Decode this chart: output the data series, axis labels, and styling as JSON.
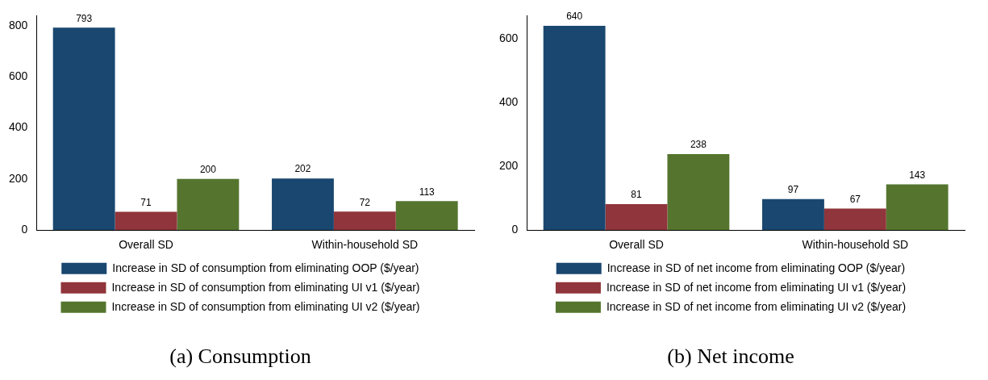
{
  "chart_data": [
    {
      "type": "bar",
      "title": "(a) Consumption",
      "categories": [
        "Overall SD",
        "Within-household SD"
      ],
      "series": [
        {
          "name": "Increase in SD of consumption from eliminating OOP ($/year)",
          "color": "#1a476f",
          "values": [
            793,
            202
          ]
        },
        {
          "name": "Increase in SD of consumption from eliminating UI v1 ($/year)",
          "color": "#90353b",
          "values": [
            71,
            72
          ]
        },
        {
          "name": "Increase in SD of consumption from eliminating UI v2 ($/year)",
          "color": "#55752f",
          "values": [
            200,
            113
          ]
        }
      ],
      "ylim": [
        0,
        840
      ],
      "yticks": [
        0,
        200,
        400,
        600,
        800
      ],
      "grid": false,
      "legend": "bottom",
      "data_labels": true
    },
    {
      "type": "bar",
      "title": "(b) Net income",
      "categories": [
        "Overall SD",
        "Within-household SD"
      ],
      "series": [
        {
          "name": "Increase in SD of net income from eliminating OOP ($/year)",
          "color": "#1a476f",
          "values": [
            640,
            97
          ]
        },
        {
          "name": "Increase in SD of net income from eliminating UI v1 ($/year)",
          "color": "#90353b",
          "values": [
            81,
            67
          ]
        },
        {
          "name": "Increase in SD of net income from eliminating UI v2 ($/year)",
          "color": "#55752f",
          "values": [
            238,
            143
          ]
        }
      ],
      "ylim": [
        0,
        672
      ],
      "yticks": [
        0,
        200,
        400,
        600
      ],
      "grid": false,
      "legend": "bottom",
      "data_labels": true
    }
  ]
}
